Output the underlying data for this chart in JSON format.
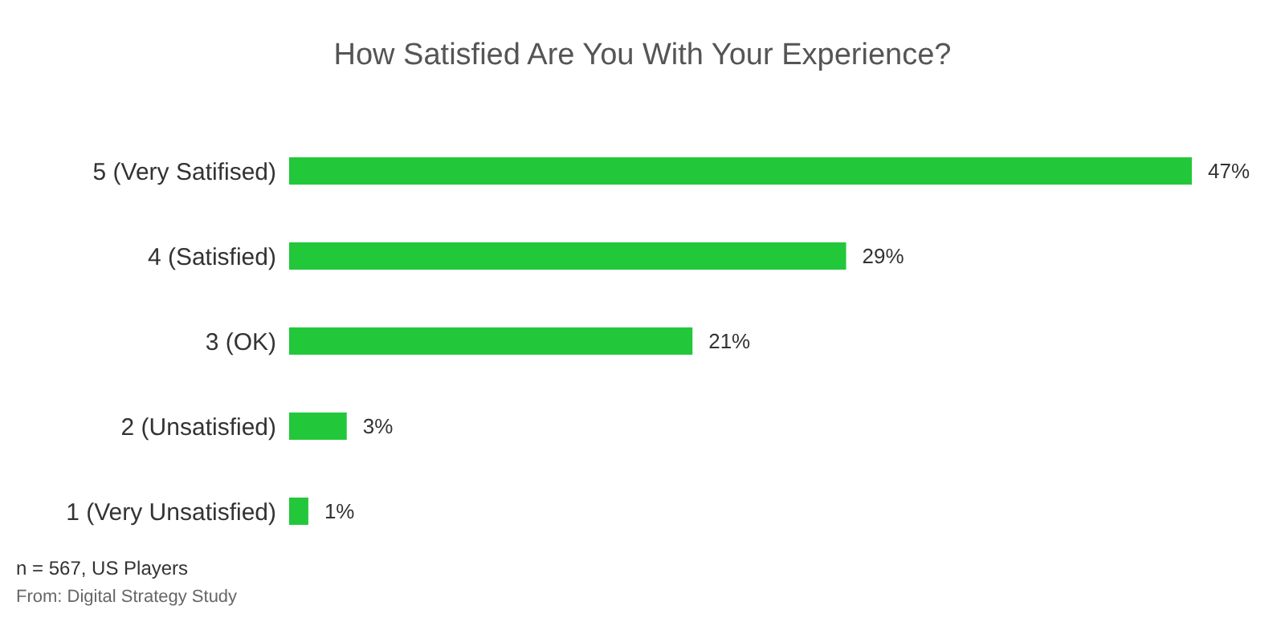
{
  "chart_data": {
    "type": "bar",
    "orientation": "horizontal",
    "title": "How Satisfied Are You With Your Experience?",
    "categories": [
      "5 (Very Satifised)",
      "4 (Satisfied)",
      "3  (OK)",
      "2 (Unsatisfied)",
      "1 (Very Unsatisfied)"
    ],
    "values": [
      47,
      29,
      21,
      3,
      1
    ],
    "value_labels": [
      "47%",
      "29%",
      "21%",
      "3%",
      "1%"
    ],
    "color": "#22c83a",
    "annotations": [
      "n = 567, US Players",
      "From: Digital Strategy Study"
    ]
  }
}
